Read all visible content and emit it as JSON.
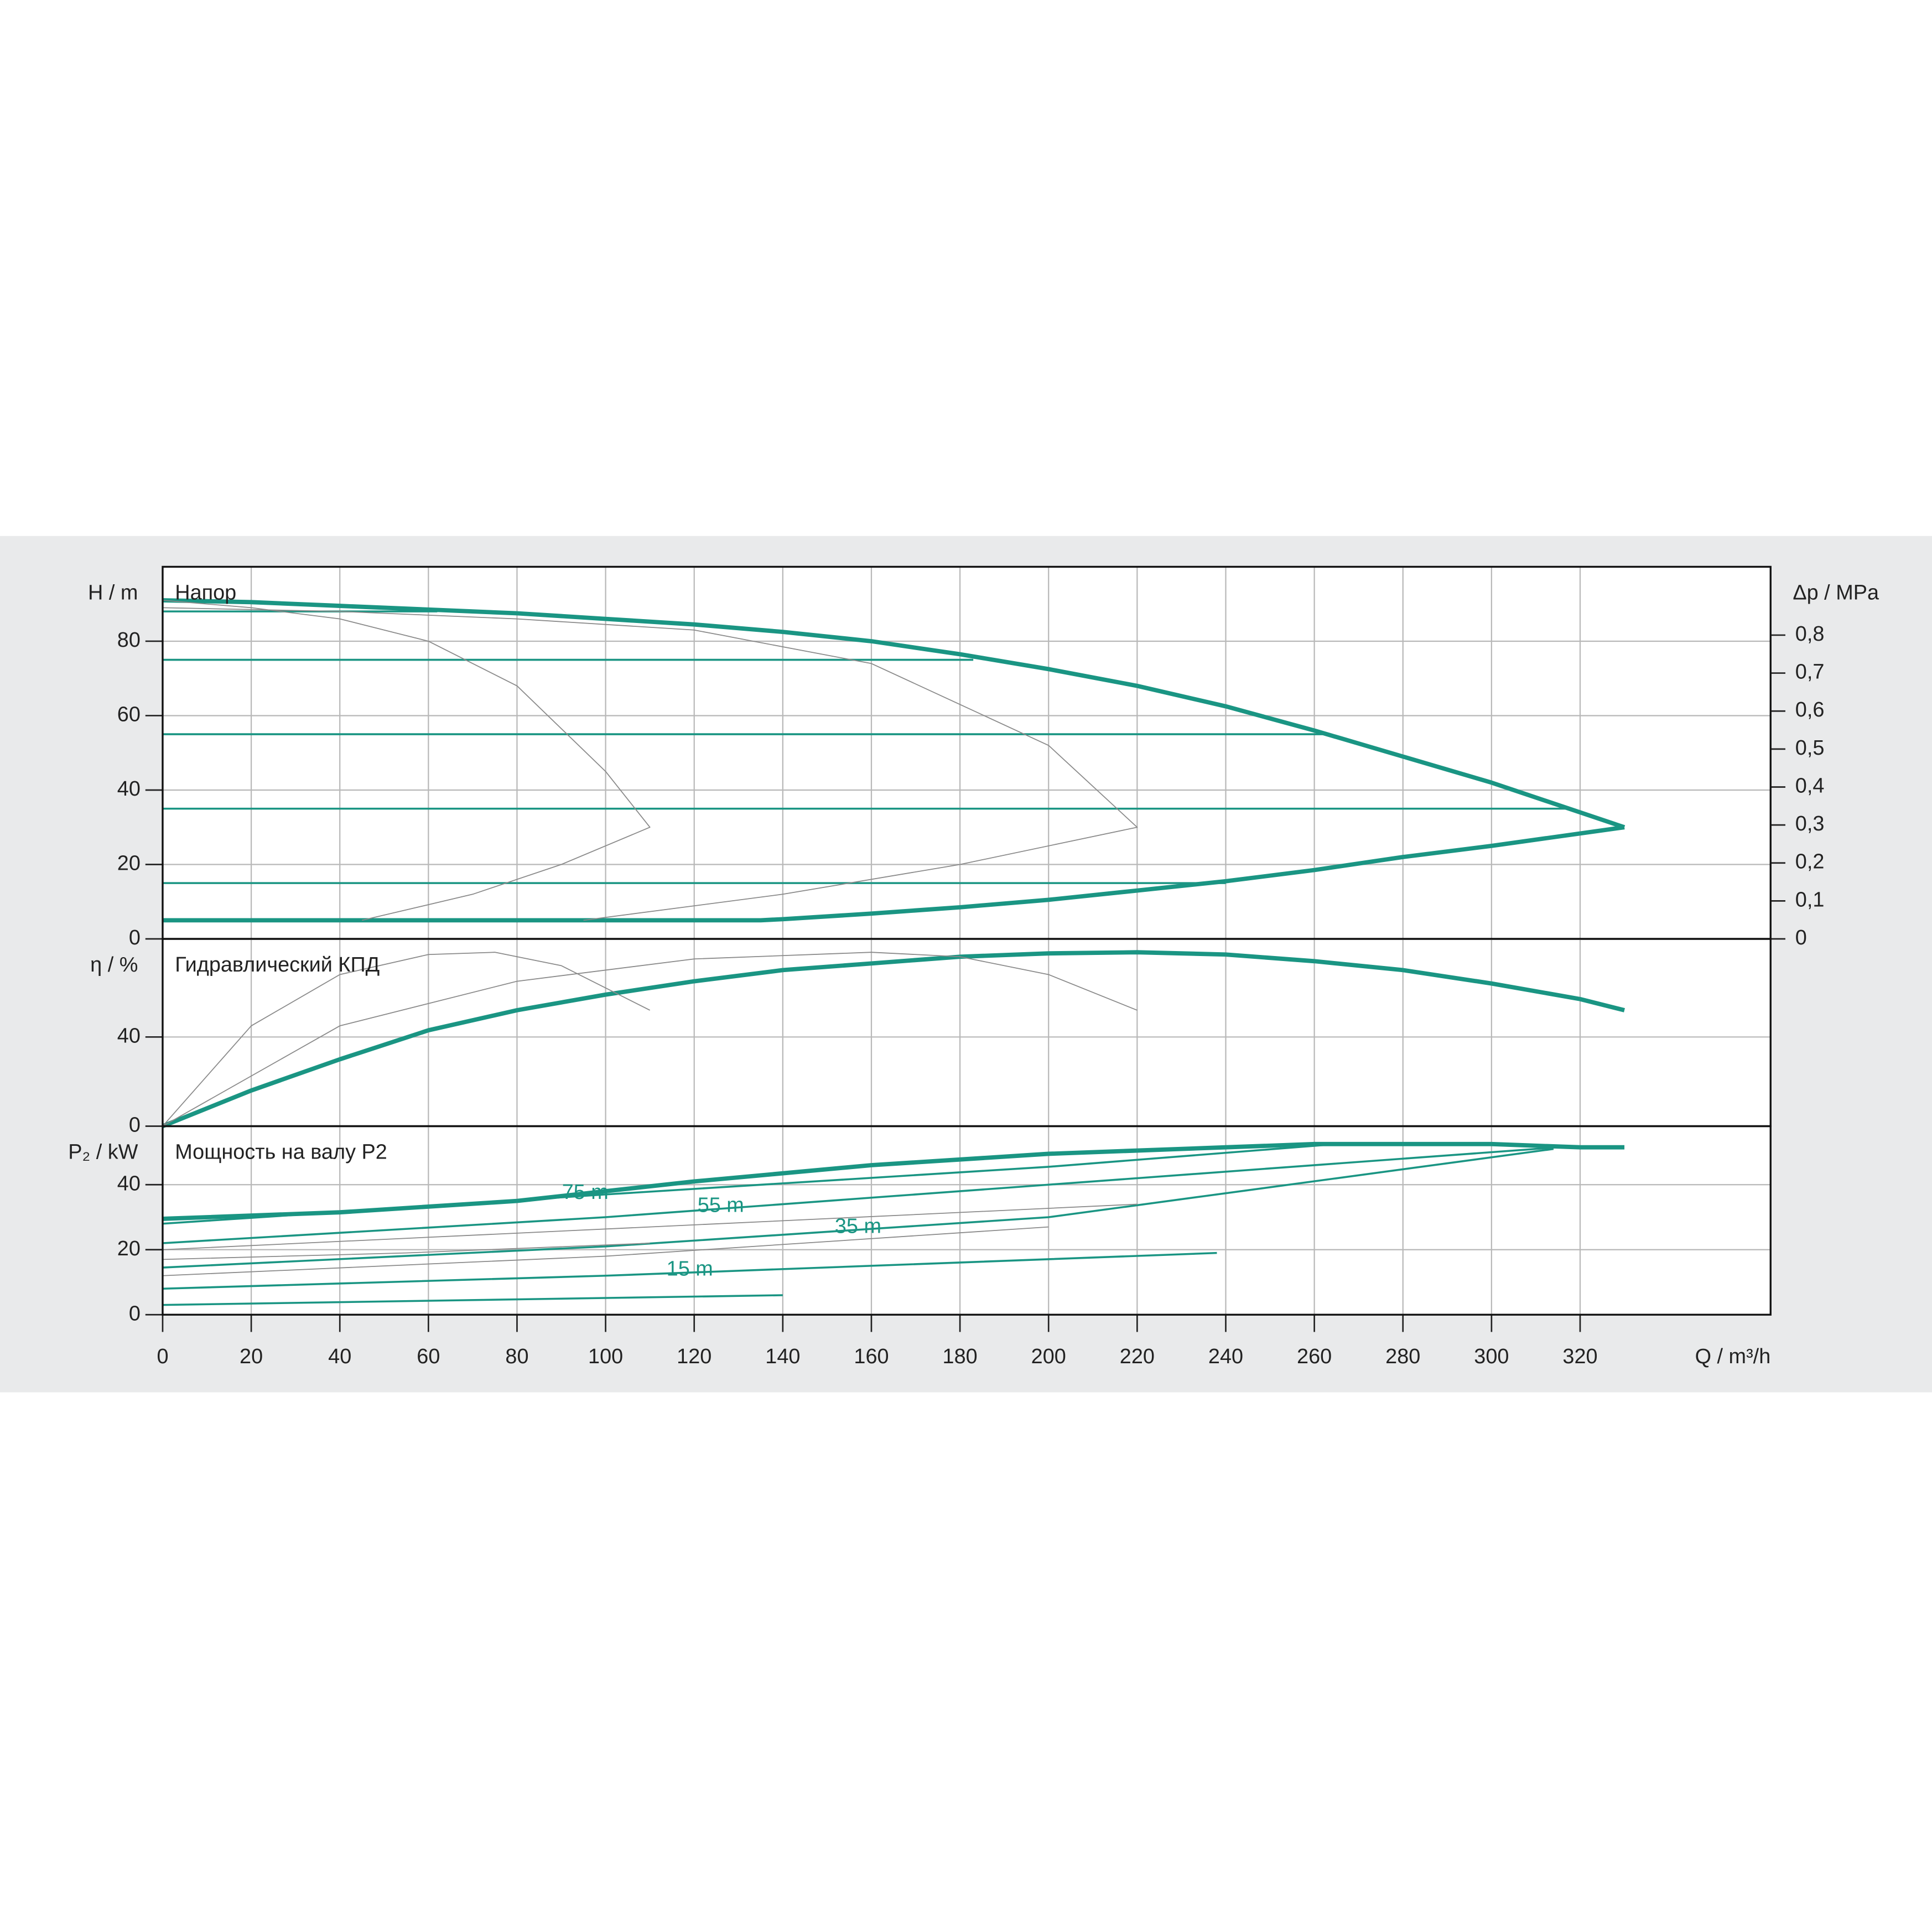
{
  "chart_data": [
    {
      "type": "line",
      "title": "Напор",
      "ylabel": "H / m",
      "y2label": "Δp / MPa",
      "xlim": [
        0,
        363
      ],
      "xticks": [
        0,
        20,
        40,
        60,
        80,
        100,
        120,
        140,
        160,
        180,
        200,
        220,
        240,
        260,
        280,
        300,
        320
      ],
      "ylim": [
        0,
        100
      ],
      "yticks": [
        0,
        20,
        40,
        60,
        80
      ],
      "y2lim": [
        0,
        0.98
      ],
      "y2ticks": [
        0,
        {
          "value": 0.1,
          "label": "0,1"
        },
        {
          "value": 0.2,
          "label": "0,2"
        },
        {
          "value": 0.3,
          "label": "0,3"
        },
        {
          "value": 0.4,
          "label": "0,4"
        },
        {
          "value": 0.5,
          "label": "0,5"
        },
        {
          "value": 0.6,
          "label": "0,6"
        },
        {
          "value": 0.7,
          "label": "0,7"
        },
        {
          "value": 0.8,
          "label": "0,8"
        }
      ],
      "grid": true,
      "series": [
        {
          "color": "#1a9583",
          "width": 3.5,
          "x": [
            0,
            20,
            40,
            60,
            80,
            100,
            120,
            140,
            160,
            180,
            200,
            220,
            240,
            260,
            280,
            300,
            320,
            330
          ],
          "values": [
            91,
            90.5,
            89.5,
            88.5,
            87.5,
            86,
            84.5,
            82.5,
            80,
            76.5,
            72.5,
            68,
            62.5,
            56,
            49,
            42,
            34,
            30
          ]
        },
        {
          "color": "#1a9583",
          "width": 3.5,
          "x": [
            330,
            300,
            280,
            260,
            240,
            220,
            200,
            180,
            160,
            140,
            135,
            0
          ],
          "values": [
            30,
            25,
            22,
            18.5,
            15.5,
            13,
            10.5,
            8.5,
            6.8,
            5.3,
            5,
            5
          ]
        },
        {
          "color": "#1a9583",
          "width": 1.6,
          "x": [
            0,
            62
          ],
          "values": [
            88,
            88
          ]
        },
        {
          "color": "#1a9583",
          "width": 1.6,
          "x": [
            0,
            183
          ],
          "values": [
            75,
            75
          ]
        },
        {
          "color": "#1a9583",
          "width": 1.6,
          "x": [
            0,
            263
          ],
          "values": [
            55,
            55
          ]
        },
        {
          "color": "#1a9583",
          "width": 1.6,
          "x": [
            0,
            318
          ],
          "values": [
            35,
            35
          ]
        },
        {
          "color": "#1a9583",
          "width": 1.6,
          "x": [
            0,
            240
          ],
          "values": [
            15,
            15
          ]
        },
        {
          "color": "#8a8a8a",
          "width": 0.8,
          "x": [
            0,
            20,
            40,
            60,
            80,
            100,
            110,
            90,
            70,
            45
          ],
          "values": [
            91,
            89,
            86,
            80,
            68,
            45,
            30,
            20,
            12,
            5
          ]
        },
        {
          "color": "#8a8a8a",
          "width": 0.8,
          "x": [
            0,
            40,
            80,
            120,
            160,
            200,
            220,
            180,
            140,
            95
          ],
          "values": [
            89,
            88,
            86,
            83,
            74,
            52,
            30,
            20,
            12,
            5
          ]
        }
      ]
    },
    {
      "type": "line",
      "title": "Гидравлический КПД",
      "ylabel": "η / %",
      "xlim": [
        0,
        363
      ],
      "xticks": [
        0,
        20,
        40,
        60,
        80,
        100,
        120,
        140,
        160,
        180,
        200,
        220,
        240,
        260,
        280,
        300,
        320
      ],
      "ylim": [
        0,
        84
      ],
      "yticks": [
        0,
        40
      ],
      "grid": true,
      "series": [
        {
          "color": "#1a9583",
          "width": 3.5,
          "x": [
            0,
            20,
            40,
            60,
            80,
            100,
            120,
            140,
            160,
            180,
            200,
            220,
            240,
            260,
            280,
            300,
            320,
            330
          ],
          "values": [
            0,
            16,
            30,
            43,
            52,
            59,
            65,
            70,
            73,
            76,
            77.5,
            78,
            77,
            74,
            70,
            64,
            57,
            52
          ]
        },
        {
          "color": "#8a8a8a",
          "width": 0.8,
          "x": [
            0,
            20,
            40,
            60,
            75,
            90,
            110
          ],
          "values": [
            0,
            45,
            68,
            77,
            78,
            72,
            52
          ]
        },
        {
          "color": "#8a8a8a",
          "width": 0.8,
          "x": [
            0,
            40,
            80,
            120,
            160,
            180,
            200,
            220
          ],
          "values": [
            0,
            45,
            65,
            75,
            78,
            76,
            68,
            52
          ]
        }
      ]
    },
    {
      "type": "line",
      "title": "Мощность на валу P2",
      "ylabel": "P₂ / kW",
      "xlabel": "Q / m³/h",
      "xlim": [
        0,
        363
      ],
      "xticks": [
        0,
        20,
        40,
        60,
        80,
        100,
        120,
        140,
        160,
        180,
        200,
        220,
        240,
        260,
        280,
        300,
        320
      ],
      "ylim": [
        0,
        58
      ],
      "yticks": [
        0,
        20,
        40
      ],
      "grid": true,
      "series": [
        {
          "color": "#1a9583",
          "width": 3.5,
          "x": [
            0,
            40,
            80,
            120,
            160,
            200,
            240,
            260,
            280,
            300,
            320,
            330
          ],
          "values": [
            29.5,
            31.5,
            35,
            41,
            46,
            49.5,
            51.5,
            52.5,
            52.5,
            52.5,
            51.5,
            51.5
          ]
        },
        {
          "color": "#1a9583",
          "width": 1.6,
          "label": "75 m",
          "x": [
            0,
            100,
            200,
            265
          ],
          "values": [
            28,
            37,
            45.5,
            52.5
          ]
        },
        {
          "color": "#1a9583",
          "width": 1.6,
          "label": "55 m",
          "x": [
            0,
            100,
            200,
            315
          ],
          "values": [
            22,
            30,
            40,
            51.5
          ]
        },
        {
          "color": "#1a9583",
          "width": 1.6,
          "label": "35 m",
          "x": [
            0,
            100,
            200,
            314
          ],
          "values": [
            14.5,
            21,
            30,
            51
          ]
        },
        {
          "color": "#1a9583",
          "width": 1.6,
          "label": "15 m",
          "x": [
            0,
            100,
            238
          ],
          "values": [
            8,
            12,
            19
          ]
        },
        {
          "color": "#1a9583",
          "width": 1.6,
          "x": [
            0,
            140
          ],
          "values": [
            3,
            6
          ]
        },
        {
          "color": "#8a8a8a",
          "width": 0.8,
          "x": [
            0,
            110,
            220
          ],
          "values": [
            20,
            27,
            34
          ]
        },
        {
          "color": "#8a8a8a",
          "width": 0.8,
          "x": [
            0,
            55,
            110
          ],
          "values": [
            17,
            19,
            22
          ]
        },
        {
          "color": "#8a8a8a",
          "width": 0.8,
          "x": [
            0,
            100,
            200
          ],
          "values": [
            12,
            18,
            27
          ]
        }
      ]
    }
  ]
}
